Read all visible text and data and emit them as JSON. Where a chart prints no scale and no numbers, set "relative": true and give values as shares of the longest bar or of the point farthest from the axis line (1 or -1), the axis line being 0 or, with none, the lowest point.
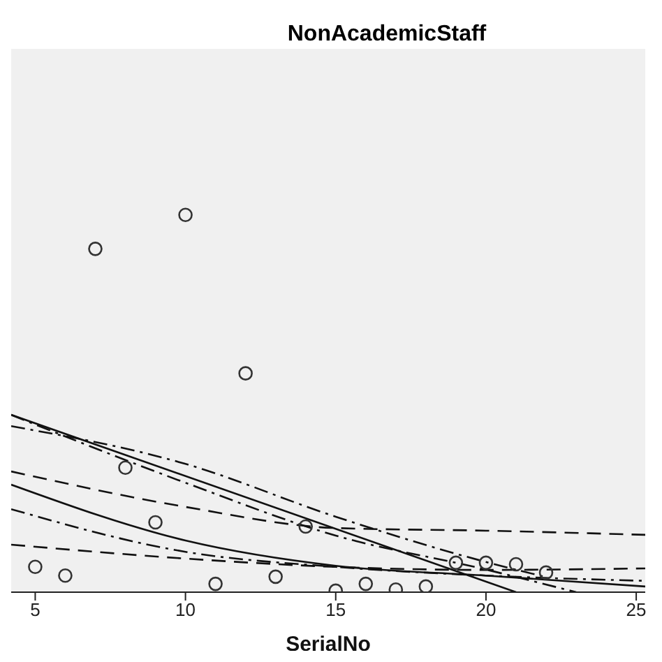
{
  "chart_data": {
    "type": "scatter",
    "title": "NonAcademicStaff",
    "xlabel": "SerialNo",
    "relative": true,
    "xlim": [
      4.2,
      25.3
    ],
    "xticks": [
      5,
      10,
      15,
      20,
      25
    ],
    "tick_labels": "x",
    "series": [
      {
        "marker": "circle",
        "color": "#333333",
        "x": [
          5,
          6,
          7,
          8,
          9,
          10,
          11,
          12,
          13,
          14,
          15,
          16,
          17,
          18,
          19,
          20,
          21,
          22
        ],
        "values": [
          0.067,
          0.044,
          0.91,
          0.33,
          0.185,
          1,
          0.022,
          0.58,
          0.041,
          0.174,
          0.004,
          0.022,
          0.007,
          0.015,
          0.078,
          0.078,
          0.074,
          0.052
        ]
      },
      {
        "type": "line",
        "color": "#111111",
        "line_style": "solid",
        "x": [
          4.2,
          21
        ],
        "values": [
          0.47,
          0
        ]
      },
      {
        "type": "line",
        "color": "#111111",
        "line_style": "solid",
        "x": [
          4.2,
          10,
          15,
          20,
          25.3
        ],
        "values": [
          0.285,
          0.137,
          0.07,
          0.044,
          0.015
        ]
      },
      {
        "type": "line",
        "color": "#111111",
        "line_style": "dashed",
        "x": [
          4.2,
          10,
          15,
          20,
          25.3
        ],
        "values": [
          0.32,
          0.226,
          0.17,
          0.163,
          0.152
        ]
      },
      {
        "type": "line",
        "color": "#111111",
        "line_style": "dotted",
        "x": [
          4.2,
          10,
          15,
          20,
          23
        ],
        "values": [
          0.47,
          0.29,
          0.15,
          0.06,
          0
        ]
      },
      {
        "type": "line",
        "color": "#111111",
        "line_style": "dotted",
        "x": [
          4.2,
          10,
          15,
          20,
          22
        ],
        "values": [
          0.44,
          0.34,
          0.2,
          0.08,
          0.04
        ]
      },
      {
        "type": "line",
        "color": "#111111",
        "line_style": "dotted",
        "x": [
          4.2,
          10,
          15,
          20,
          25.3
        ],
        "values": [
          0.22,
          0.107,
          0.067,
          0.044,
          0.03
        ]
      },
      {
        "type": "line",
        "color": "#111111",
        "line_style": "dashed",
        "x": [
          4.2,
          10,
          15,
          20,
          25.3
        ],
        "values": [
          0.126,
          0.089,
          0.067,
          0.059,
          0.063
        ]
      }
    ]
  }
}
